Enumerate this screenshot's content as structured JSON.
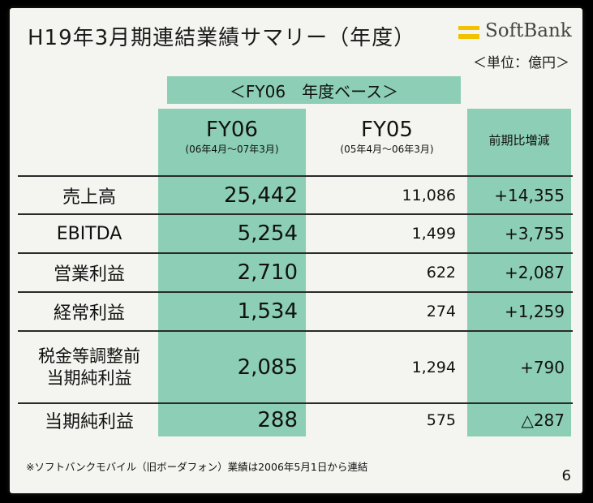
{
  "slide": {
    "title": "H19年3月期連結業績サマリー（年度）",
    "logo_text": "SoftBank",
    "unit_note": "＜単位：億円＞",
    "base_header": "＜FY06　年度ベース＞",
    "footnote": "※ソフトバンクモバイル（旧ボーダフォン）業績は2006年5月1日から連結",
    "page_number": "6"
  },
  "table": {
    "columns": [
      {
        "label": "FY06",
        "sub": "(06年4月～07年3月)"
      },
      {
        "label": "FY05",
        "sub": "(05年4月～06年3月)"
      },
      {
        "label": "前期比増減",
        "sub": ""
      }
    ],
    "rows": [
      {
        "label": "売上高",
        "fy06": "25,442",
        "fy05": "11,086",
        "diff": "+14,355"
      },
      {
        "label": "EBITDA",
        "fy06": "5,254",
        "fy05": "1,499",
        "diff": "+3,755"
      },
      {
        "label": "営業利益",
        "fy06": "2,710",
        "fy05": "622",
        "diff": "+2,087"
      },
      {
        "label": "経常利益",
        "fy06": "1,534",
        "fy05": "274",
        "diff": "+1,259"
      },
      {
        "label_line1": "税金等調整前",
        "label_line2": "当期純利益",
        "fy06": "2,085",
        "fy05": "1,294",
        "diff": "+790"
      },
      {
        "label": "当期純利益",
        "fy06": "288",
        "fy05": "575",
        "diff": "△287"
      }
    ]
  },
  "colors": {
    "accent_green": "#8ccfb6",
    "logo_yellow": "#f2c200",
    "background": "#f4f4f0"
  }
}
